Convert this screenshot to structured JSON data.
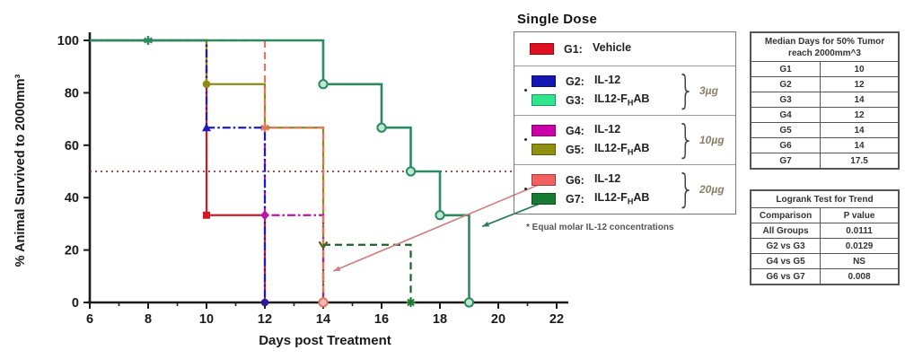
{
  "chart_data": {
    "type": "line",
    "subtype": "kaplan-meier-step",
    "title": "",
    "xlabel": "Days post Treatment",
    "ylabel": "% Animal Survived to 2000mm³",
    "xlim": [
      6,
      22
    ],
    "ylim": [
      0,
      100
    ],
    "xticks": [
      6,
      8,
      10,
      12,
      14,
      16,
      18,
      20,
      22
    ],
    "xticks_minor": [
      7,
      9,
      11,
      13,
      15,
      17,
      19,
      21
    ],
    "yticks": [
      0,
      20,
      40,
      60,
      80,
      100
    ],
    "grid": false,
    "reference_line": {
      "y": 50,
      "x_start": 6,
      "x_end": 20.5,
      "color": "#8a3a3a"
    },
    "series": [
      {
        "name": "G1 Vehicle",
        "color": "#cf1a26",
        "dash": "solid",
        "width": 2.2,
        "points": [
          [
            6,
            100
          ],
          [
            10,
            100
          ],
          [
            10,
            33.3
          ],
          [
            12,
            33.3
          ],
          [
            12,
            0
          ]
        ],
        "markers": [
          {
            "x": 10,
            "y": 33.3,
            "shape": "square"
          }
        ]
      },
      {
        "name": "G5 IL12-FHAB 10ug",
        "color": "#8f8a16",
        "dash": "solid",
        "width": 2.2,
        "points": [
          [
            6,
            100
          ],
          [
            10,
            100
          ],
          [
            10,
            83.3
          ],
          [
            12,
            83.3
          ],
          [
            12,
            66.7
          ],
          [
            14,
            66.7
          ],
          [
            14,
            0
          ]
        ],
        "markers": [
          {
            "x": 10,
            "y": 83.3,
            "shape": "circle"
          }
        ]
      },
      {
        "name": "G4 IL-12 10ug",
        "color": "#b517a8",
        "dash": "dashdot",
        "width": 2.2,
        "points": [
          [
            12,
            66.7
          ],
          [
            12,
            33.3
          ],
          [
            14,
            33.3
          ],
          [
            14,
            0
          ]
        ],
        "markers": [
          {
            "x": 12,
            "y": 33.3,
            "shape": "diamond"
          }
        ]
      },
      {
        "name": "G2 IL-12 3ug",
        "color": "#1c1cbe",
        "dash": "dashdot",
        "width": 2.2,
        "points": [
          [
            6,
            100
          ],
          [
            10,
            100
          ],
          [
            10,
            66.7
          ],
          [
            12,
            66.7
          ],
          [
            12,
            0
          ]
        ],
        "markers": [
          {
            "x": 10,
            "y": 66.7,
            "shape": "triangle"
          },
          {
            "x": 12,
            "y": 0,
            "shape": "circle",
            "color": "#2a1a9e"
          }
        ]
      },
      {
        "name": "G6 IL-12 20ug",
        "color": "#e0795c",
        "dash": "dashed",
        "width": 2.2,
        "points": [
          [
            6,
            100
          ],
          [
            12,
            100
          ],
          [
            12,
            66.7
          ],
          [
            14,
            66.7
          ],
          [
            14,
            0
          ]
        ],
        "markers": [
          {
            "x": 12,
            "y": 66.7,
            "shape": "star6"
          },
          {
            "x": 14,
            "y": 0,
            "shape": "circleOpen",
            "fill": "#f2b8c0"
          }
        ]
      },
      {
        "name": "G3 IL12-FHAB 3ug",
        "color": "#1d5e2e",
        "dash": "dashed",
        "width": 2.2,
        "points": [
          [
            14,
            22
          ],
          [
            17,
            22
          ],
          [
            17,
            0
          ]
        ],
        "markers": [
          {
            "x": 14,
            "y": 22,
            "shape": "chevron",
            "color": "#556018"
          },
          {
            "x": 17,
            "y": 0,
            "shape": "plusx",
            "color": "#1e7a30"
          }
        ]
      },
      {
        "name": "G7 IL12-FHAB 20ug",
        "color": "#2c8a60",
        "dash": "solid",
        "width": 2.6,
        "points": [
          [
            6,
            100
          ],
          [
            14,
            100
          ],
          [
            14,
            83.3
          ],
          [
            16,
            83.3
          ],
          [
            16,
            66.7
          ],
          [
            17,
            66.7
          ],
          [
            17,
            50
          ],
          [
            18,
            50
          ],
          [
            18,
            33.3
          ],
          [
            19,
            33.3
          ],
          [
            19,
            0
          ]
        ],
        "markers": [
          {
            "x": 8,
            "y": 100,
            "shape": "star6"
          },
          {
            "x": 14,
            "y": 83.3,
            "shape": "circleOpen",
            "fill": "#bfe8d4"
          },
          {
            "x": 16,
            "y": 66.7,
            "shape": "circleOpen",
            "fill": "#bfe8d4"
          },
          {
            "x": 17,
            "y": 50,
            "shape": "circleOpen",
            "fill": "#bfe8d4"
          },
          {
            "x": 18,
            "y": 33.3,
            "shape": "circleOpen",
            "fill": "#bfe8d4"
          },
          {
            "x": 19,
            "y": 0,
            "shape": "circleOpen",
            "fill": "#bfe8d4"
          }
        ]
      }
    ],
    "arrows": [
      {
        "from": [
          21.4,
          45
        ],
        "to": [
          14.35,
          12
        ],
        "color": "#cf8080"
      },
      {
        "from": [
          21.6,
          38.5
        ],
        "to": [
          19.45,
          29
        ],
        "color": "#2e7a58"
      }
    ]
  },
  "legend": {
    "title": "Single Dose",
    "footnote": "* Equal molar IL-12 concentrations",
    "rows": [
      {
        "bullet": "",
        "brace": "",
        "dose": "",
        "entries": [
          {
            "swatch": "#e01020",
            "code": "G1:",
            "pre": "Vehicle",
            "sub": "",
            "post": ""
          },
          {
            "swatch": "",
            "code": "",
            "pre": "",
            "sub": "",
            "post": ""
          }
        ]
      },
      {
        "bullet": "•",
        "brace": "}",
        "dose": "3µg",
        "entries": [
          {
            "swatch": "#1515b5",
            "code": "G2:",
            "pre": "IL-12",
            "sub": "",
            "post": ""
          },
          {
            "swatch": "#2ee68c",
            "code": "G3:",
            "pre": "IL12-F",
            "sub": "H",
            "post": "AB"
          }
        ]
      },
      {
        "bullet": "•",
        "brace": "}",
        "dose": "10µg",
        "entries": [
          {
            "swatch": "#cc00a8",
            "code": "G4:",
            "pre": "IL-12",
            "sub": "",
            "post": ""
          },
          {
            "swatch": "#8f8f12",
            "code": "G5:",
            "pre": "IL12-F",
            "sub": "H",
            "post": "AB"
          }
        ]
      },
      {
        "bullet": "•",
        "brace": "}",
        "dose": "20µg",
        "entries": [
          {
            "swatch": "#f26060",
            "code": "G6:",
            "pre": "IL-12",
            "sub": "",
            "post": ""
          },
          {
            "swatch": "#177a33",
            "code": "G7:",
            "pre": "IL12-F",
            "sub": "H",
            "post": "AB"
          }
        ]
      }
    ]
  },
  "tables": {
    "median": {
      "title_line1": "Median Days for 50% Tumor",
      "title_line2": "reach 2000mm^3",
      "rows": [
        [
          "G1",
          "10"
        ],
        [
          "G2",
          "12"
        ],
        [
          "G3",
          "14"
        ],
        [
          "G4",
          "12"
        ],
        [
          "G5",
          "14"
        ],
        [
          "G6",
          "14"
        ],
        [
          "G7",
          "17.5"
        ]
      ]
    },
    "logrank": {
      "title": "Logrank Test for Trend",
      "headers": [
        "Comparison",
        "P value"
      ],
      "rows": [
        [
          "All Groups",
          "0.0111"
        ],
        [
          "G2 vs G3",
          "0.0129"
        ],
        [
          "G4 vs G5",
          "NS"
        ],
        [
          "G6 vs G7",
          "0.008"
        ]
      ]
    }
  }
}
